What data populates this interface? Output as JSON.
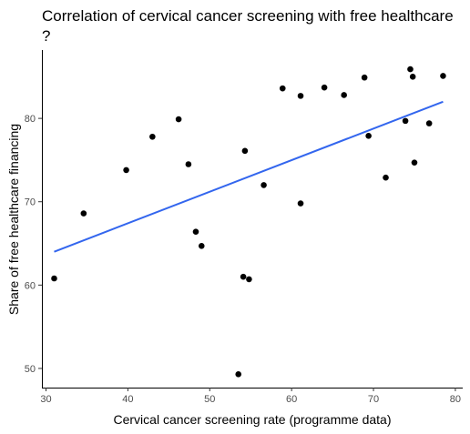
{
  "chart_data": {
    "type": "scatter",
    "title_line1": "Correlation of cervical cancer screening with free healthcare",
    "title_line2": "?",
    "xlabel": "Cervical cancer screening rate (programme data)",
    "ylabel": "Share of free healthcare financing",
    "xlim": [
      29.5,
      80.9
    ],
    "ylim": [
      47.7,
      88.2
    ],
    "xticks": [
      30,
      40,
      50,
      60,
      70,
      80
    ],
    "yticks": [
      50,
      60,
      70,
      80
    ],
    "grid": false,
    "points": [
      {
        "x": 31.0,
        "y": 60.8
      },
      {
        "x": 34.6,
        "y": 68.6
      },
      {
        "x": 39.8,
        "y": 73.8
      },
      {
        "x": 43.0,
        "y": 77.8
      },
      {
        "x": 46.2,
        "y": 79.9
      },
      {
        "x": 47.4,
        "y": 74.5
      },
      {
        "x": 48.3,
        "y": 66.4
      },
      {
        "x": 49.0,
        "y": 64.7
      },
      {
        "x": 53.5,
        "y": 49.3
      },
      {
        "x": 54.1,
        "y": 61.0
      },
      {
        "x": 54.3,
        "y": 76.1
      },
      {
        "x": 54.8,
        "y": 60.7
      },
      {
        "x": 56.6,
        "y": 72.0
      },
      {
        "x": 58.9,
        "y": 83.6
      },
      {
        "x": 61.1,
        "y": 82.7
      },
      {
        "x": 61.1,
        "y": 69.8
      },
      {
        "x": 64.0,
        "y": 83.7
      },
      {
        "x": 66.4,
        "y": 82.8
      },
      {
        "x": 68.9,
        "y": 84.9
      },
      {
        "x": 69.4,
        "y": 77.9
      },
      {
        "x": 71.5,
        "y": 72.9
      },
      {
        "x": 73.9,
        "y": 79.7
      },
      {
        "x": 74.5,
        "y": 85.9
      },
      {
        "x": 74.8,
        "y": 85.0
      },
      {
        "x": 75.0,
        "y": 74.7
      },
      {
        "x": 76.8,
        "y": 79.4
      },
      {
        "x": 78.5,
        "y": 85.1
      }
    ],
    "trendline": {
      "x": [
        31.0,
        78.5
      ],
      "y": [
        64.0,
        82.0
      ],
      "color": "#3366ee"
    },
    "point_color": "#000000"
  }
}
